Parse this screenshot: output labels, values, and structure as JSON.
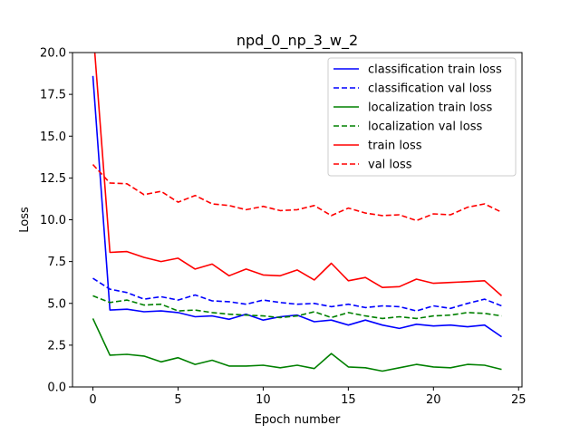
{
  "chart_data": {
    "type": "line",
    "title": "npd_0_np_3_w_2",
    "xlabel": "Epoch number",
    "ylabel": "Loss",
    "xlim": [
      -1.2,
      25.2
    ],
    "ylim": [
      0,
      20
    ],
    "xticks": [
      0,
      5,
      10,
      15,
      20,
      25
    ],
    "yticks": [
      0.0,
      2.5,
      5.0,
      7.5,
      10.0,
      12.5,
      15.0,
      17.5,
      20.0
    ],
    "xtick_labels": [
      "0",
      "5",
      "10",
      "15",
      "20",
      "25"
    ],
    "ytick_labels": [
      "0.0",
      "2.5",
      "5.0",
      "7.5",
      "10.0",
      "12.5",
      "15.0",
      "17.5",
      "20.0"
    ],
    "grid": false,
    "legend_position": "top-right",
    "x": [
      0,
      1,
      2,
      3,
      4,
      5,
      6,
      7,
      8,
      9,
      10,
      11,
      12,
      13,
      14,
      15,
      16,
      17,
      18,
      19,
      20,
      21,
      22,
      23,
      24
    ],
    "series": [
      {
        "name": "classification train loss",
        "color": "#0000ff",
        "dash": "solid",
        "values": [
          18.6,
          4.6,
          4.65,
          4.5,
          4.55,
          4.45,
          4.2,
          4.25,
          4.05,
          4.35,
          4.0,
          4.2,
          4.3,
          3.9,
          4.0,
          3.7,
          4.0,
          3.7,
          3.5,
          3.75,
          3.65,
          3.7,
          3.6,
          3.7,
          3.0
        ]
      },
      {
        "name": "classification val loss",
        "color": "#0000ff",
        "dash": "dashed",
        "values": [
          6.5,
          5.85,
          5.65,
          5.25,
          5.4,
          5.2,
          5.5,
          5.15,
          5.1,
          4.95,
          5.2,
          5.05,
          4.95,
          5.0,
          4.8,
          4.95,
          4.75,
          4.85,
          4.8,
          4.55,
          4.85,
          4.7,
          5.0,
          5.25,
          4.85
        ]
      },
      {
        "name": "localization train loss",
        "color": "#008000",
        "dash": "solid",
        "values": [
          4.1,
          1.9,
          1.95,
          1.85,
          1.5,
          1.75,
          1.35,
          1.6,
          1.25,
          1.25,
          1.3,
          1.15,
          1.3,
          1.1,
          2.0,
          1.2,
          1.15,
          0.95,
          1.15,
          1.35,
          1.2,
          1.15,
          1.35,
          1.3,
          1.05
        ]
      },
      {
        "name": "localization val loss",
        "color": "#008000",
        "dash": "dashed",
        "values": [
          5.45,
          5.05,
          5.2,
          4.9,
          4.95,
          4.55,
          4.6,
          4.45,
          4.35,
          4.3,
          4.25,
          4.15,
          4.25,
          4.5,
          4.15,
          4.45,
          4.25,
          4.1,
          4.2,
          4.1,
          4.25,
          4.3,
          4.45,
          4.4,
          4.25
        ]
      },
      {
        "name": "train loss",
        "color": "#ff0000",
        "dash": "solid",
        "values": [
          21.5,
          8.05,
          8.1,
          7.75,
          7.5,
          7.7,
          7.05,
          7.35,
          6.65,
          7.05,
          6.7,
          6.65,
          7.0,
          6.4,
          7.4,
          6.35,
          6.55,
          5.95,
          6.0,
          6.45,
          6.2,
          6.25,
          6.3,
          6.35,
          5.45
        ]
      },
      {
        "name": "val loss",
        "color": "#ff0000",
        "dash": "dashed",
        "values": [
          13.3,
          12.2,
          12.15,
          11.5,
          11.7,
          11.05,
          11.45,
          10.95,
          10.85,
          10.6,
          10.8,
          10.55,
          10.6,
          10.85,
          10.25,
          10.7,
          10.4,
          10.25,
          10.3,
          9.95,
          10.35,
          10.3,
          10.75,
          10.95,
          10.45
        ]
      }
    ]
  }
}
